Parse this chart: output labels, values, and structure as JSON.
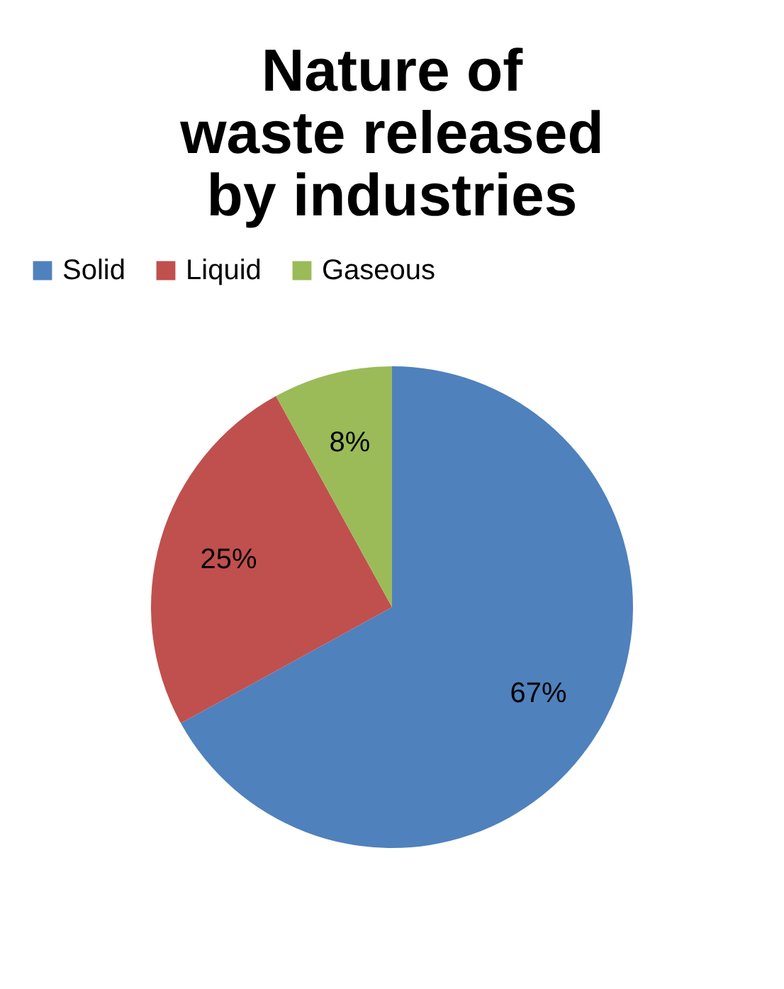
{
  "chart_data": {
    "type": "pie",
    "title": "Nature of waste released by industries",
    "categories": [
      "Solid",
      "Liquid",
      "Gaseous"
    ],
    "values": [
      67,
      25,
      8
    ],
    "colors": [
      "#4f81bd",
      "#c0504d",
      "#9bbb59"
    ],
    "value_labels": [
      "67%",
      "25%",
      "8%"
    ],
    "legend": "top"
  }
}
